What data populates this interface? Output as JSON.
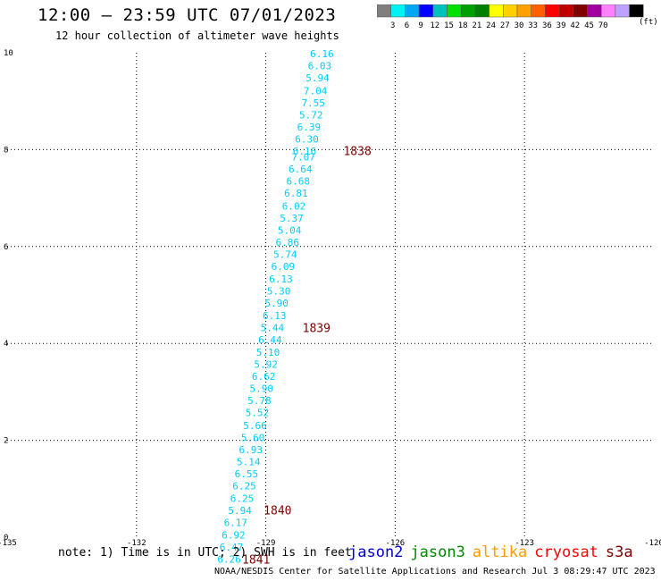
{
  "title": "12:00 – 23:59 UTC 07/01/2023",
  "subtitle": "12 hour collection of altimeter wave heights",
  "colorbar": {
    "colors": [
      "#7f7f7f",
      "#00f2f2",
      "#00a8f2",
      "#0000ff",
      "#00bfbf",
      "#00e000",
      "#00a000",
      "#008000",
      "#ffff00",
      "#ffd000",
      "#ffa000",
      "#ff6000",
      "#ff0000",
      "#c00000",
      "#800000",
      "#a000a0",
      "#ff80ff",
      "#c0a0ff",
      "#000000"
    ],
    "labels": [
      "3",
      "6",
      "9",
      "12",
      "15",
      "18",
      "21",
      "24",
      "27",
      "30",
      "33",
      "36",
      "39",
      "42",
      "45",
      "70"
    ],
    "unit": "(ft)"
  },
  "chart_data": {
    "type": "scatter",
    "title": "12:00 – 23:59 UTC 07/01/2023",
    "subtitle": "12 hour collection of altimeter wave heights",
    "xlabel": "",
    "ylabel": "",
    "xlim": [
      -135,
      -120
    ],
    "ylim": [
      0,
      10
    ],
    "xticks": [
      "-135",
      "-132",
      "-129",
      "-126",
      "-123",
      "-120"
    ],
    "yticks": [
      "0",
      "2",
      "4",
      "6",
      "8",
      "10"
    ],
    "grid": true,
    "points": [
      {
        "x": -127.7,
        "y": 9.98,
        "label": "6.16"
      },
      {
        "x": -127.75,
        "y": 9.73,
        "label": "6.03"
      },
      {
        "x": -127.8,
        "y": 9.48,
        "label": "5.94"
      },
      {
        "x": -127.85,
        "y": 9.22,
        "label": "7.04"
      },
      {
        "x": -127.9,
        "y": 8.97,
        "label": "7.55"
      },
      {
        "x": -127.95,
        "y": 8.72,
        "label": "5.72"
      },
      {
        "x": -128.0,
        "y": 8.47,
        "label": "6.39"
      },
      {
        "x": -128.05,
        "y": 8.22,
        "label": "6.30"
      },
      {
        "x": -128.1,
        "y": 7.97,
        "label": "6.16"
      },
      {
        "x": -128.13,
        "y": 7.85,
        "label": "7.07"
      },
      {
        "x": -128.2,
        "y": 7.6,
        "label": "6.64"
      },
      {
        "x": -128.25,
        "y": 7.35,
        "label": "6.68"
      },
      {
        "x": -128.3,
        "y": 7.1,
        "label": "6.81"
      },
      {
        "x": -128.35,
        "y": 6.84,
        "label": "6.02"
      },
      {
        "x": -128.4,
        "y": 6.59,
        "label": "5.37"
      },
      {
        "x": -128.45,
        "y": 6.34,
        "label": "5.04"
      },
      {
        "x": -128.5,
        "y": 6.09,
        "label": "6.86"
      },
      {
        "x": -128.55,
        "y": 5.84,
        "label": "5.74"
      },
      {
        "x": -128.6,
        "y": 5.59,
        "label": "6.09"
      },
      {
        "x": -128.65,
        "y": 5.33,
        "label": "6.13"
      },
      {
        "x": -128.7,
        "y": 5.08,
        "label": "5.30"
      },
      {
        "x": -128.75,
        "y": 4.83,
        "label": "5.90"
      },
      {
        "x": -128.8,
        "y": 4.58,
        "label": "6.13"
      },
      {
        "x": -128.85,
        "y": 4.33,
        "label": "5.44"
      },
      {
        "x": -128.9,
        "y": 4.08,
        "label": "6.44"
      },
      {
        "x": -128.95,
        "y": 3.82,
        "label": "5.10"
      },
      {
        "x": -129.0,
        "y": 3.57,
        "label": "5.92"
      },
      {
        "x": -129.05,
        "y": 3.32,
        "label": "6.62"
      },
      {
        "x": -129.1,
        "y": 3.07,
        "label": "5.90"
      },
      {
        "x": -129.15,
        "y": 2.82,
        "label": "5.78"
      },
      {
        "x": -129.2,
        "y": 2.57,
        "label": "5.52"
      },
      {
        "x": -129.25,
        "y": 2.31,
        "label": "5.66"
      },
      {
        "x": -129.3,
        "y": 2.06,
        "label": "5.60"
      },
      {
        "x": -129.35,
        "y": 1.81,
        "label": "6.93"
      },
      {
        "x": -129.4,
        "y": 1.56,
        "label": "5.14"
      },
      {
        "x": -129.45,
        "y": 1.31,
        "label": "6.55"
      },
      {
        "x": -129.5,
        "y": 1.06,
        "label": "6.25"
      },
      {
        "x": -129.55,
        "y": 0.8,
        "label": "6.25"
      },
      {
        "x": -129.6,
        "y": 0.55,
        "label": "5.94"
      },
      {
        "x": -129.7,
        "y": 0.3,
        "label": "6.17"
      },
      {
        "x": -129.75,
        "y": 0.05,
        "label": "6.92"
      },
      {
        "x": -129.8,
        "y": -0.2,
        "label": "6.47"
      },
      {
        "x": -129.85,
        "y": -0.45,
        "label": "6.26"
      }
    ],
    "time_labels": [
      {
        "x": -127.2,
        "y": 7.98,
        "label": "1838"
      },
      {
        "x": -128.15,
        "y": 4.33,
        "label": "1839"
      },
      {
        "x": -129.05,
        "y": 0.56,
        "label": "1840"
      },
      {
        "x": -129.55,
        "y": -0.45,
        "label": "1841"
      }
    ]
  },
  "note": "note:  1) Time is in UTC; 2) SWH is in feet",
  "satellites": [
    {
      "name": "jason2",
      "color": "#0000cc"
    },
    {
      "name": "jason3",
      "color": "#008800"
    },
    {
      "name": "altika",
      "color": "#ff9900"
    },
    {
      "name": "cryosat",
      "color": "#ff0000"
    },
    {
      "name": "s3a",
      "color": "#800000"
    }
  ],
  "footer": "NOAA/NESDIS Center for Satellite Applications and Research    Jul  3 08:29:47 UTC 2023",
  "colors": {
    "point_label": "#00ccff",
    "time_label": "#800000",
    "grid": "#000000"
  }
}
